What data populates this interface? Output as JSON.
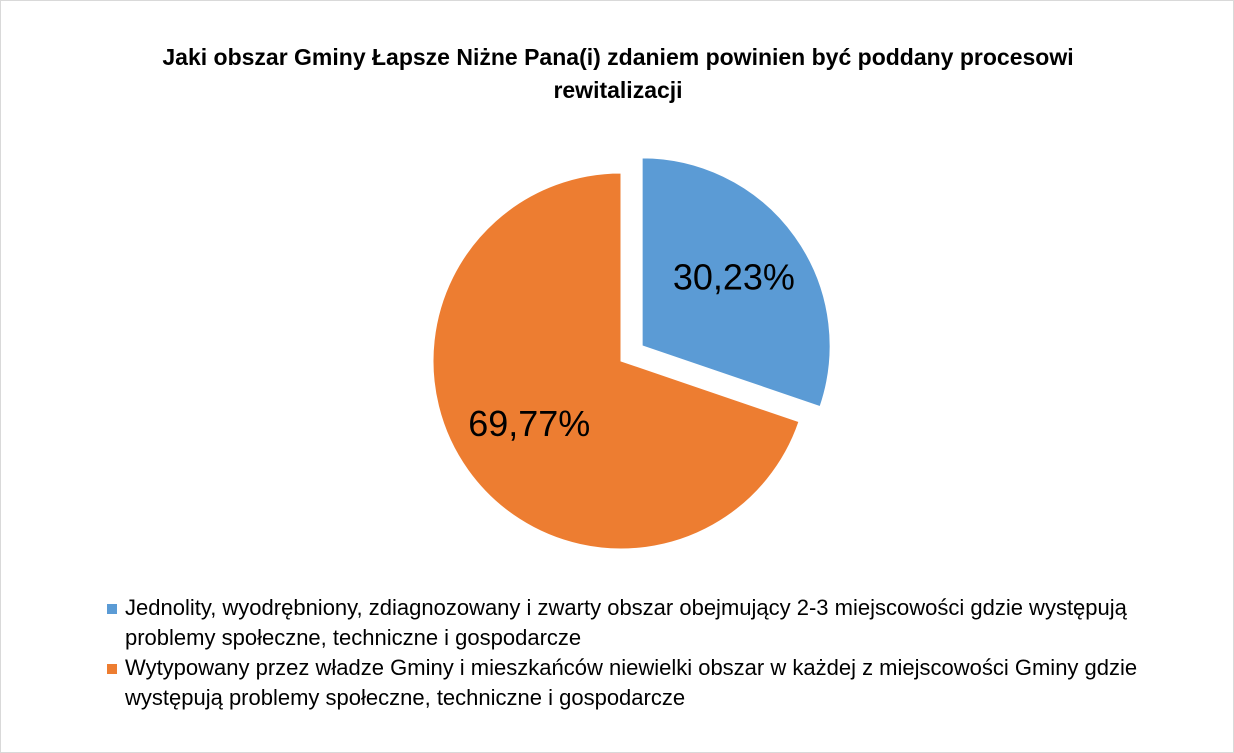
{
  "chart_data": {
    "type": "pie",
    "title": "Jaki obszar Gminy Łapsze Niżne Pana(i) zdaniem powinien być poddany procesowi rewitalizacji",
    "categories": [
      "Jednolity, wyodrębniony, zdiagnozowany i zwarty obszar obejmujący 2-3 miejscowości gdzie występują problemy społeczne, techniczne i gospodarcze",
      "Wytypowany przez władze Gminy i mieszkańców niewielki obszar w każdej z miejscowości Gminy gdzie występują problemy społeczne, techniczne i gospodarcze"
    ],
    "values": [
      30.23,
      69.77
    ],
    "value_labels": [
      "30,23%",
      "69,77%"
    ],
    "colors": [
      "#5b9bd5",
      "#ed7d31"
    ]
  }
}
